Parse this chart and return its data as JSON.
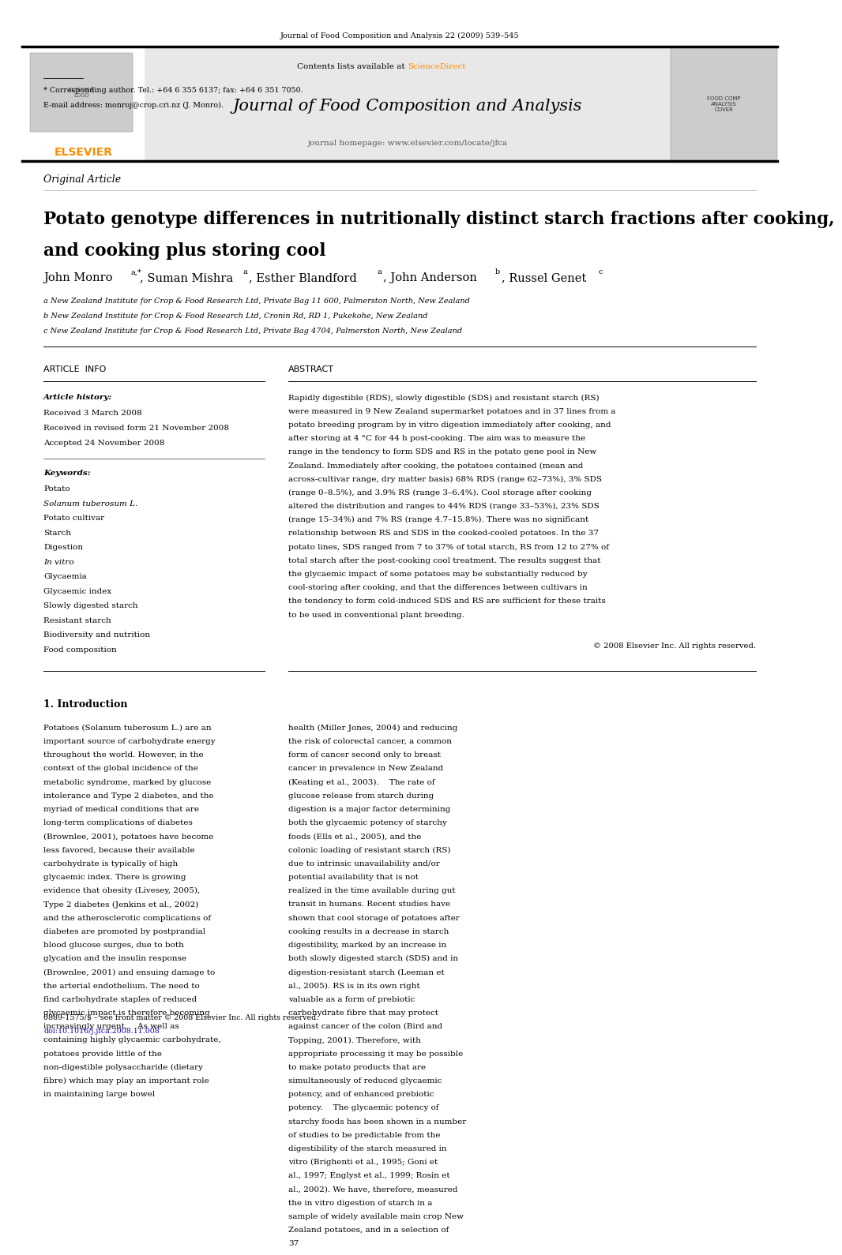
{
  "page_width": 9.92,
  "page_height": 13.23,
  "bg_color": "#ffffff",
  "top_journal_line": "Journal of Food Composition and Analysis 22 (2009) 539–545",
  "header_bg": "#e8e8e8",
  "contents_text": "Contents lists available at ",
  "sciencedirect_text": "ScienceDirect",
  "sciencedirect_color": "#FF8C00",
  "journal_title": "Journal of Food Composition and Analysis",
  "journal_homepage": "journal homepage: www.elsevier.com/locate/jfca",
  "elsevier_color": "#FF8C00",
  "article_type": "Original Article",
  "paper_title_line1": "Potato genotype differences in nutritionally distinct starch fractions after cooking,",
  "paper_title_line2": "and cooking plus storing cool",
  "authors_plain": "John Monro",
  "authors_sup1": "a,*",
  "authors_mid1": ", Suman Mishra",
  "authors_sup2": "a",
  "authors_mid2": ", Esther Blandford",
  "authors_sup3": "a",
  "authors_mid3": ", John Anderson",
  "authors_sup4": "b",
  "authors_mid4": ", Russel Genet",
  "authors_sup5": "c",
  "affil_a": "a New Zealand Institute for Crop & Food Research Ltd, Private Bag 11 600, Palmerston North, New Zealand",
  "affil_b": "b New Zealand Institute for Crop & Food Research Ltd, Cronin Rd, RD 1, Pukekohe, New Zealand",
  "affil_c": "c New Zealand Institute for Crop & Food Research Ltd, Private Bag 4704, Palmerston North, New Zealand",
  "article_info_header": "ARTICLE  INFO",
  "abstract_header": "ABSTRACT",
  "article_history_label": "Article history:",
  "received": "Received 3 March 2008",
  "received_revised": "Received in revised form 21 November 2008",
  "accepted": "Accepted 24 November 2008",
  "keywords_label": "Keywords:",
  "keywords": [
    "Potato",
    "Solanum tuberosum L.",
    "Potato cultivar",
    "Starch",
    "Digestion",
    "In vitro",
    "Glycaemia",
    "Glycaemic index",
    "Slowly digested starch",
    "Resistant starch",
    "Biodiversity and nutrition",
    "Food composition"
  ],
  "italic_keywords": [
    "Solanum tuberosum L.",
    "In vitro"
  ],
  "abstract_text": "Rapidly digestible (RDS), slowly digestible (SDS) and resistant starch (RS) were measured in 9 New Zealand supermarket potatoes and in 37 lines from a potato breeding program by in vitro digestion immediately after cooking, and after storing at 4 °C for 44 h post-cooking. The aim was to measure the range in the tendency to form SDS and RS in the potato gene pool in New Zealand. Immediately after cooking, the potatoes contained (mean and across-cultivar range, dry matter basis) 68% RDS (range 62–73%), 3% SDS (range 0–8.5%), and 3.9% RS (range 3–6.4%). Cool storage after cooking altered the distribution and ranges to 44% RDS (range 33–53%), 23% SDS (range 15–34%) and 7% RS (range 4.7–15.8%). There was no significant relationship between RS and SDS in the cooked-cooled potatoes. In the 37 potato lines, SDS ranged from 7 to 37% of total starch, RS from 12 to 27% of total starch after the post-cooking cool treatment. The results suggest that the glycaemic impact of some potatoes may be substantially reduced by cool-storing after cooking, and that the differences between cultivars in the tendency to form cold-induced SDS and RS are sufficient for these traits to be used in conventional plant breeding.",
  "copyright_text": "© 2008 Elsevier Inc. All rights reserved.",
  "intro_header": "1. Introduction",
  "intro_col1": "Potatoes (Solanum tuberosum L.) are an important source of carbohydrate energy throughout the world. However, in the context of the global incidence of the metabolic syndrome, marked by glucose intolerance and Type 2 diabetes, and the myriad of medical conditions that are long-term complications of diabetes (Brownlee, 2001), potatoes have become less favored, because their available carbohydrate is typically of high glycaemic index. There is growing evidence that obesity (Livesey, 2005), Type 2 diabetes (Jenkins et al., 2002) and the atherosclerotic complications of diabetes are promoted by postprandial blood glucose surges, due to both glycation and the insulin response (Brownlee, 2001) and ensuing damage to the arterial endothelium. The need to find carbohydrate staples of reduced glycaemic impact is therefore becoming increasingly urgent.    As well as containing highly glycaemic carbohydrate, potatoes provide little of the non-digestible polysaccharide (dietary fibre) which may play an important role in maintaining large bowel",
  "intro_col2": "health (Miller Jones, 2004) and reducing the risk of colorectal cancer, a common form of cancer second only to breast cancer in prevalence in New Zealand (Keating et al., 2003).    The rate of glucose release from starch during digestion is a major factor determining both the glycaemic potency of starchy foods (Ells et al., 2005), and the colonic loading of resistant starch (RS) due to intrinsic unavailability and/or potential availability that is not realized in the time available during gut transit in humans. Recent studies have shown that cool storage of potatoes after cooking results in a decrease in starch digestibility, marked by an increase in both slowly digested starch (SDS) and in digestion-resistant starch (Leeman et al., 2005). RS is in its own right valuable as a form of prebiotic carbohydrate fibre that may protect against cancer of the colon (Bird and Topping, 2001). Therefore, with appropriate processing it may be possible to make potato products that are simultaneously of reduced glycaemic potency, and of enhanced prebiotic potency.    The glycaemic potency of starchy foods has been shown in a number of studies to be predictable from the digestibility of the starch measured in vitro (Brighenti et al., 1995; Goni et al., 1997; Englyst et al., 1999; Rosin et al., 2002). We have, therefore, measured the in vitro digestion of starch in a sample of widely available main crop New Zealand potatoes, and in a selection of 37",
  "footnote_star": "* Corresponding author. Tel.: +64 6 355 6137; fax: +64 6 351 7050.",
  "footnote_email": "E-mail address: monroj@crop.cri.nz (J. Monro).",
  "footer_text1": "0889-1575/$ – see front matter © 2008 Elsevier Inc. All rights reserved.",
  "footer_text2": "doi:10.1016/j.jfca.2008.11.008",
  "link_color": "#1a0dab"
}
